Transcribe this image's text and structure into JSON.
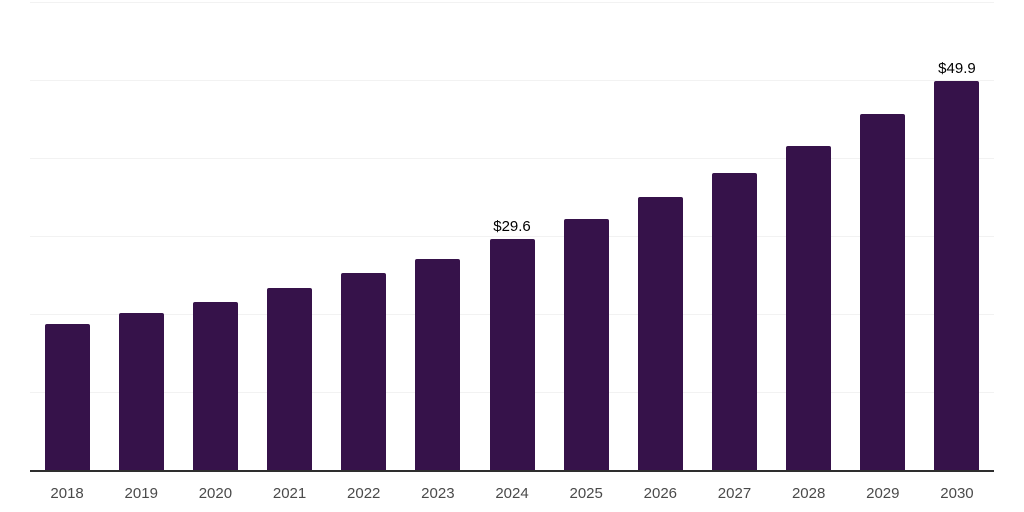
{
  "chart_data": {
    "type": "bar",
    "title": "",
    "xlabel": "",
    "ylabel": "",
    "categories": [
      "2018",
      "2019",
      "2020",
      "2021",
      "2022",
      "2023",
      "2024",
      "2025",
      "2026",
      "2027",
      "2028",
      "2029",
      "2030"
    ],
    "values": [
      18.7,
      20.1,
      21.6,
      23.3,
      25.2,
      27.1,
      29.6,
      32.2,
      35.0,
      38.1,
      41.6,
      45.6,
      49.9
    ],
    "data_labels": {
      "2024": "$29.6",
      "2030": "$49.9"
    },
    "ylim": [
      0,
      60
    ],
    "gridline_values": [
      10,
      20,
      30,
      40,
      50,
      60
    ],
    "grid": "horizontal-only",
    "legend": "none",
    "colors": {
      "bar": "#36124A",
      "axis_line": "#2e2e2e",
      "gridline": "#f2f2f2",
      "data_label": "#000000",
      "tick_label": "#4a4a4a",
      "background": "#ffffff"
    }
  }
}
